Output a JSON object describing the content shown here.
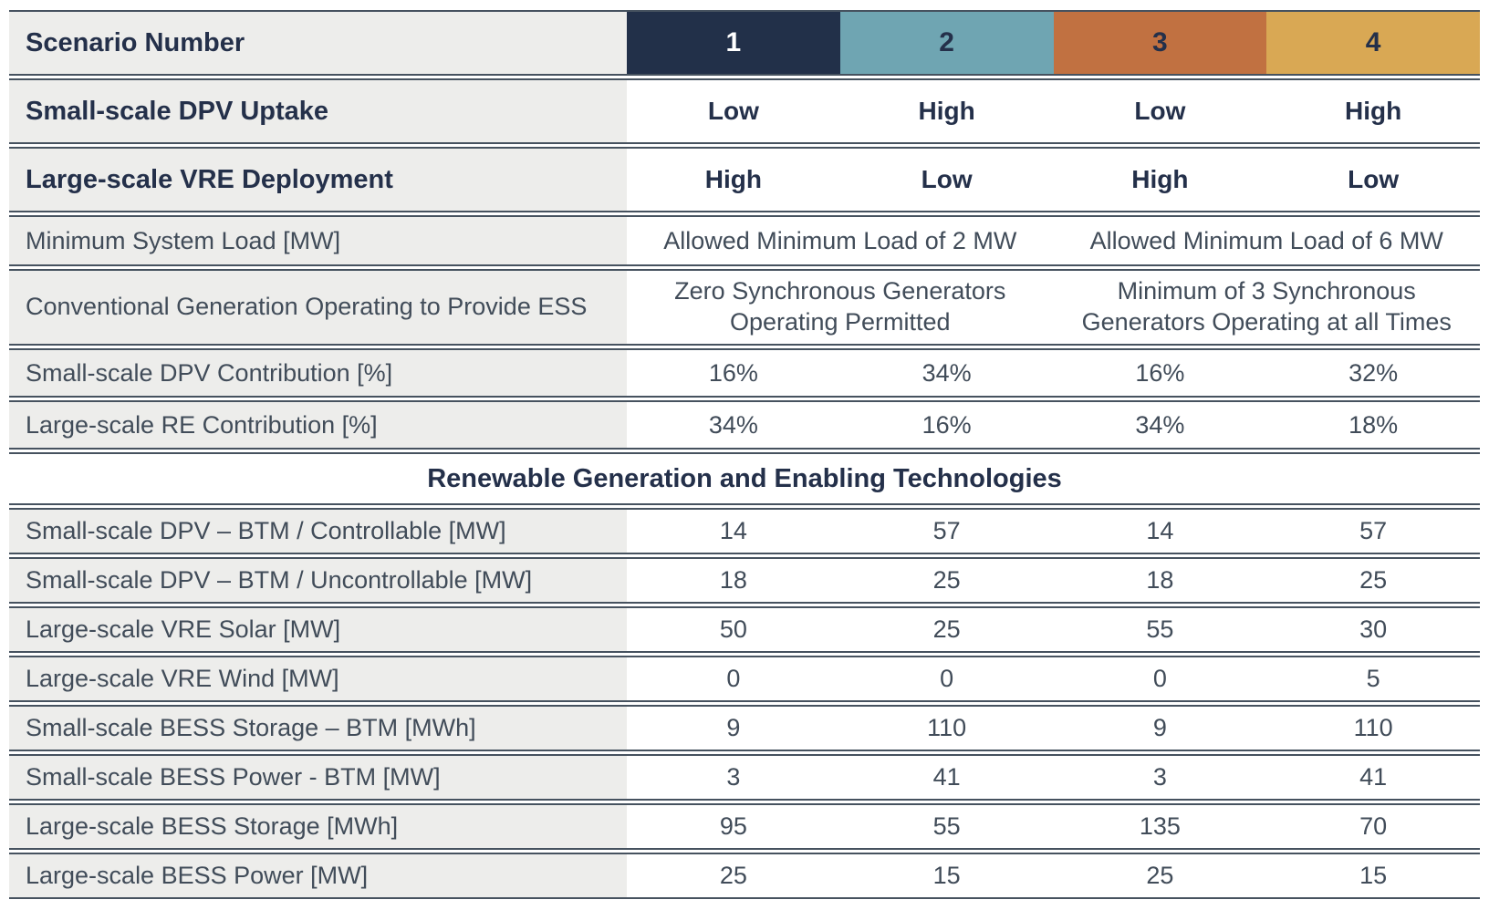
{
  "colors": {
    "scenario1_bg": "#223049",
    "scenario2_bg": "#6fa5b2",
    "scenario3_bg": "#c17141",
    "scenario4_bg": "#d9a854",
    "label_bg": "#ededeb",
    "border": "#46525f",
    "heading_text": "#24304a",
    "body_text": "#414c59"
  },
  "header": {
    "label": "Scenario Number",
    "scenarios": [
      "1",
      "2",
      "3",
      "4"
    ]
  },
  "uptake_row": {
    "label": "Small-scale DPV Uptake",
    "values": [
      "Low",
      "High",
      "Low",
      "High"
    ]
  },
  "vre_row": {
    "label": "Large-scale VRE Deployment",
    "values": [
      "High",
      "Low",
      "High",
      "Low"
    ]
  },
  "min_load_row": {
    "label": "Minimum System Load [MW]",
    "values": [
      "Allowed Minimum Load of 2 MW",
      "Allowed Minimum Load of 6 MW"
    ]
  },
  "conv_gen_row": {
    "label": "Conventional Generation Operating to Provide ESS",
    "values": [
      "Zero Synchronous Generators Operating Permitted",
      "Minimum of 3 Synchronous Generators Operating at all Times"
    ]
  },
  "dpv_contrib_row": {
    "label": "Small-scale DPV Contribution [%]",
    "values": [
      "16%",
      "34%",
      "16%",
      "32%"
    ]
  },
  "re_contrib_row": {
    "label": "Large-scale RE Contribution [%]",
    "values": [
      "34%",
      "16%",
      "34%",
      "18%"
    ]
  },
  "section_header": "Renewable Generation and Enabling Technologies",
  "tech_rows": [
    {
      "label": "Small-scale DPV – BTM / Controllable [MW]",
      "values": [
        "14",
        "57",
        "14",
        "57"
      ]
    },
    {
      "label": "Small-scale DPV – BTM / Uncontrollable [MW]",
      "values": [
        "18",
        "25",
        "18",
        "25"
      ]
    },
    {
      "label": "Large-scale VRE Solar [MW]",
      "values": [
        "50",
        "25",
        "55",
        "30"
      ]
    },
    {
      "label": "Large-scale VRE Wind [MW]",
      "values": [
        "0",
        "0",
        "0",
        "5"
      ]
    },
    {
      "label": "Small-scale BESS Storage – BTM [MWh]",
      "values": [
        "9",
        "110",
        "9",
        "110"
      ]
    },
    {
      "label": "Small-scale BESS Power - BTM [MW]",
      "values": [
        "3",
        "41",
        "3",
        "41"
      ]
    },
    {
      "label": "Large-scale BESS Storage [MWh]",
      "values": [
        "95",
        "55",
        "135",
        "70"
      ]
    },
    {
      "label": "Large-scale BESS Power [MW]",
      "values": [
        "25",
        "15",
        "25",
        "15"
      ]
    }
  ],
  "chart_data": {
    "type": "table",
    "title": "Scenario Number",
    "columns": [
      "Scenario 1",
      "Scenario 2",
      "Scenario 3",
      "Scenario 4"
    ],
    "rows": [
      {
        "label": "Small-scale DPV Uptake",
        "values": [
          "Low",
          "High",
          "Low",
          "High"
        ]
      },
      {
        "label": "Large-scale VRE Deployment",
        "values": [
          "High",
          "Low",
          "High",
          "Low"
        ]
      },
      {
        "label": "Minimum System Load [MW]",
        "values": [
          "Allowed Minimum Load of 2 MW",
          "Allowed Minimum Load of 2 MW",
          "Allowed Minimum Load of 6 MW",
          "Allowed Minimum Load of 6 MW"
        ]
      },
      {
        "label": "Conventional Generation Operating to Provide ESS",
        "values": [
          "Zero Synchronous Generators Operating Permitted",
          "Zero Synchronous Generators Operating Permitted",
          "Minimum of 3 Synchronous Generators Operating at all Times",
          "Minimum of 3 Synchronous Generators Operating at all Times"
        ]
      },
      {
        "label": "Small-scale DPV Contribution [%]",
        "values": [
          16,
          34,
          16,
          32
        ]
      },
      {
        "label": "Large-scale RE Contribution [%]",
        "values": [
          34,
          16,
          34,
          18
        ]
      },
      {
        "label": "Small-scale DPV – BTM / Controllable [MW]",
        "values": [
          14,
          57,
          14,
          57
        ]
      },
      {
        "label": "Small-scale DPV – BTM / Uncontrollable [MW]",
        "values": [
          18,
          25,
          18,
          25
        ]
      },
      {
        "label": "Large-scale VRE Solar [MW]",
        "values": [
          50,
          25,
          55,
          30
        ]
      },
      {
        "label": "Large-scale VRE Wind [MW]",
        "values": [
          0,
          0,
          0,
          5
        ]
      },
      {
        "label": "Small-scale BESS Storage – BTM [MWh]",
        "values": [
          9,
          110,
          9,
          110
        ]
      },
      {
        "label": "Small-scale BESS Power - BTM [MW]",
        "values": [
          3,
          41,
          3,
          41
        ]
      },
      {
        "label": "Large-scale BESS Storage [MWh]",
        "values": [
          95,
          55,
          135,
          70
        ]
      },
      {
        "label": "Large-scale BESS Power [MW]",
        "values": [
          25,
          15,
          25,
          15
        ]
      }
    ],
    "section_break": {
      "after_row": "Large-scale RE Contribution [%]",
      "label": "Renewable Generation and Enabling Technologies"
    }
  }
}
